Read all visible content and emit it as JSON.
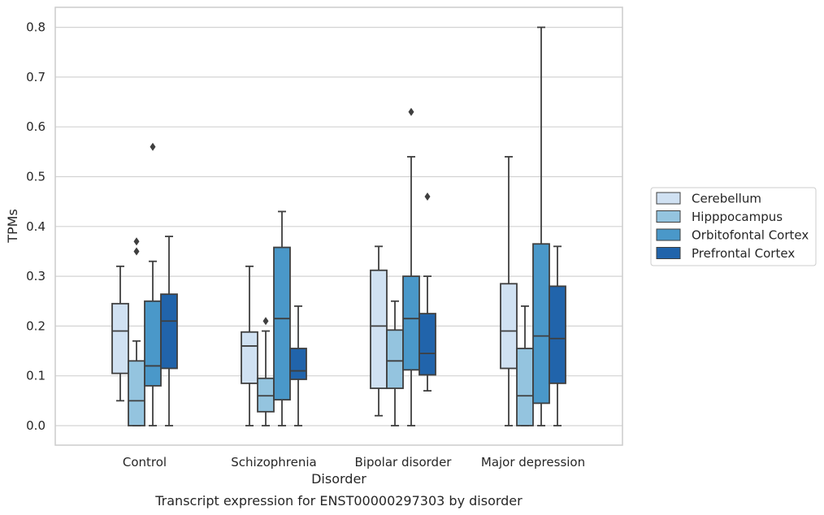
{
  "chart_data": {
    "type": "box",
    "caption": "Transcript expression for ENST00000297303 by disorder",
    "xlabel": "Disorder",
    "ylabel": "TPMs",
    "ylim": [
      -0.04,
      0.84
    ],
    "yticks": [
      "0.0",
      "0.1",
      "0.2",
      "0.3",
      "0.4",
      "0.5",
      "0.6",
      "0.7",
      "0.8"
    ],
    "grid": "horizontal",
    "legend_position": "right",
    "categories": [
      "Control",
      "Schizophrenia",
      "Bipolar disorder",
      "Major depression"
    ],
    "series": [
      {
        "name": "Cerebellum",
        "color": "#d0e1f2",
        "boxes": [
          {
            "whisker_low": 0.05,
            "q1": 0.105,
            "median": 0.19,
            "q3": 0.245,
            "whisker_high": 0.32,
            "outliers": []
          },
          {
            "whisker_low": 0.0,
            "q1": 0.085,
            "median": 0.16,
            "q3": 0.188,
            "whisker_high": 0.32,
            "outliers": []
          },
          {
            "whisker_low": 0.02,
            "q1": 0.075,
            "median": 0.2,
            "q3": 0.312,
            "whisker_high": 0.36,
            "outliers": []
          },
          {
            "whisker_low": 0.0,
            "q1": 0.115,
            "median": 0.19,
            "q3": 0.285,
            "whisker_high": 0.54,
            "outliers": []
          }
        ]
      },
      {
        "name": "Hipppocampus",
        "color": "#94c4df",
        "boxes": [
          {
            "whisker_low": 0.0,
            "q1": 0.0,
            "median": 0.05,
            "q3": 0.13,
            "whisker_high": 0.17,
            "outliers": [
              0.35,
              0.37
            ]
          },
          {
            "whisker_low": 0.0,
            "q1": 0.028,
            "median": 0.06,
            "q3": 0.095,
            "whisker_high": 0.19,
            "outliers": [
              0.21
            ]
          },
          {
            "whisker_low": 0.0,
            "q1": 0.075,
            "median": 0.13,
            "q3": 0.192,
            "whisker_high": 0.25,
            "outliers": []
          },
          {
            "whisker_low": 0.0,
            "q1": 0.0,
            "median": 0.06,
            "q3": 0.155,
            "whisker_high": 0.24,
            "outliers": []
          }
        ]
      },
      {
        "name": "Orbitofontal Cortex",
        "color": "#4a98c9",
        "boxes": [
          {
            "whisker_low": 0.0,
            "q1": 0.08,
            "median": 0.12,
            "q3": 0.25,
            "whisker_high": 0.33,
            "outliers": [
              0.56
            ]
          },
          {
            "whisker_low": 0.0,
            "q1": 0.052,
            "median": 0.215,
            "q3": 0.358,
            "whisker_high": 0.43,
            "outliers": []
          },
          {
            "whisker_low": 0.0,
            "q1": 0.112,
            "median": 0.215,
            "q3": 0.3,
            "whisker_high": 0.54,
            "outliers": [
              0.63
            ]
          },
          {
            "whisker_low": 0.0,
            "q1": 0.045,
            "median": 0.18,
            "q3": 0.365,
            "whisker_high": 0.8,
            "outliers": []
          }
        ]
      },
      {
        "name": "Prefrontal Cortex",
        "color": "#2164ab",
        "boxes": [
          {
            "whisker_low": 0.0,
            "q1": 0.115,
            "median": 0.21,
            "q3": 0.264,
            "whisker_high": 0.38,
            "outliers": []
          },
          {
            "whisker_low": 0.0,
            "q1": 0.093,
            "median": 0.11,
            "q3": 0.155,
            "whisker_high": 0.24,
            "outliers": []
          },
          {
            "whisker_low": 0.07,
            "q1": 0.102,
            "median": 0.145,
            "q3": 0.225,
            "whisker_high": 0.3,
            "outliers": [
              0.46
            ]
          },
          {
            "whisker_low": 0.0,
            "q1": 0.085,
            "median": 0.175,
            "q3": 0.28,
            "whisker_high": 0.36,
            "outliers": []
          }
        ]
      }
    ]
  }
}
